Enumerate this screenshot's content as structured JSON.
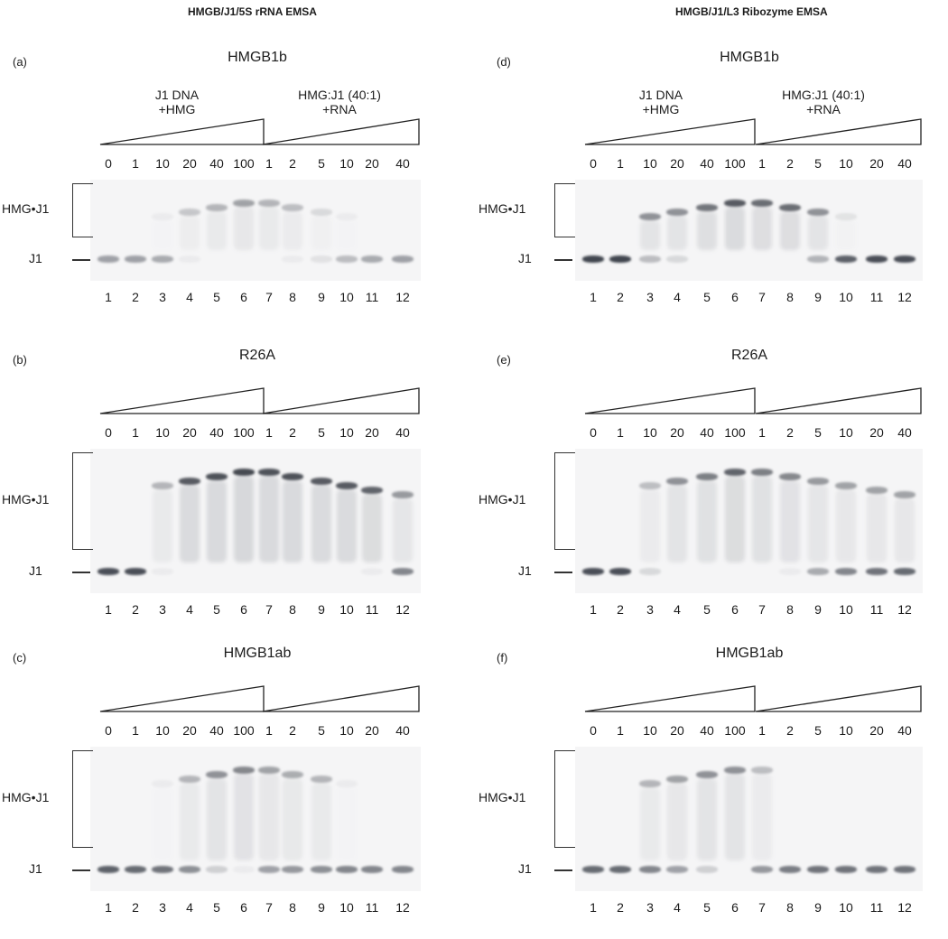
{
  "figure": {
    "column_titles": [
      "HMGB/J1/5S rRNA EMSA",
      "HMGB/J1/L3 Ribozyme EMSA"
    ],
    "bound_label": "HMG•J1",
    "free_label": "J1",
    "panels": [
      {
        "letter": "(a)",
        "protein": "HMGB1b",
        "column": 0,
        "group_labels": [
          "J1 DNA\n+HMG",
          "HMG:J1 (40:1)\n+RNA"
        ],
        "concentrations_protein": [
          "0",
          "1",
          "10",
          "20",
          "40",
          "100"
        ],
        "concentrations_rna": [
          "1",
          "2",
          "5",
          "10",
          "20",
          "40"
        ],
        "lane_numbers": [
          "1",
          "2",
          "3",
          "4",
          "5",
          "6",
          "7",
          "8",
          "9",
          "10",
          "11",
          "12"
        ],
        "bound_band_intensity": [
          0,
          0,
          0.05,
          0.25,
          0.35,
          0.45,
          0.35,
          0.3,
          0.15,
          0.05,
          0,
          0
        ],
        "free_band_intensity": [
          0.45,
          0.45,
          0.4,
          0.05,
          0,
          0,
          0,
          0.05,
          0.1,
          0.3,
          0.4,
          0.45
        ]
      },
      {
        "letter": "(b)",
        "protein": "R26A",
        "column": 0,
        "group_labels": [],
        "concentrations_protein": [
          "0",
          "1",
          "10",
          "20",
          "40",
          "100"
        ],
        "concentrations_rna": [
          "1",
          "2",
          "5",
          "10",
          "20",
          "40"
        ],
        "lane_numbers": [
          "1",
          "2",
          "3",
          "4",
          "5",
          "6",
          "7",
          "8",
          "9",
          "10",
          "11",
          "12"
        ],
        "bound_band_intensity": [
          0,
          0,
          0.35,
          0.85,
          0.9,
          0.95,
          0.9,
          0.9,
          0.85,
          0.85,
          0.8,
          0.5
        ],
        "free_band_intensity": [
          0.9,
          0.9,
          0.05,
          0,
          0,
          0,
          0,
          0,
          0,
          0,
          0.05,
          0.6
        ]
      },
      {
        "letter": "(c)",
        "protein": "HMGB1ab",
        "column": 0,
        "group_labels": [],
        "concentrations_protein": [
          "0",
          "1",
          "10",
          "20",
          "40",
          "100"
        ],
        "concentrations_rna": [
          "1",
          "2",
          "5",
          "10",
          "20",
          "40"
        ],
        "lane_numbers": [
          "1",
          "2",
          "3",
          "4",
          "5",
          "6",
          "7",
          "8",
          "9",
          "10",
          "11",
          "12"
        ],
        "bound_band_intensity": [
          0,
          0,
          0.05,
          0.35,
          0.55,
          0.6,
          0.45,
          0.4,
          0.35,
          0.05,
          0,
          0
        ],
        "free_band_intensity": [
          0.8,
          0.75,
          0.7,
          0.55,
          0.2,
          0.05,
          0.45,
          0.5,
          0.55,
          0.6,
          0.6,
          0.6
        ]
      },
      {
        "letter": "(d)",
        "protein": "HMGB1b",
        "column": 1,
        "group_labels": [
          "J1 DNA\n+HMG",
          "HMG:J1 (40:1)\n+RNA"
        ],
        "concentrations_protein": [
          "0",
          "1",
          "10",
          "20",
          "40",
          "100"
        ],
        "concentrations_rna": [
          "1",
          "2",
          "5",
          "10",
          "20",
          "40"
        ],
        "lane_numbers": [
          "1",
          "2",
          "3",
          "4",
          "5",
          "6",
          "7",
          "8",
          "9",
          "10",
          "11",
          "12"
        ],
        "bound_band_intensity": [
          0,
          0,
          0.55,
          0.55,
          0.7,
          0.85,
          0.75,
          0.75,
          0.55,
          0.1,
          0,
          0
        ],
        "free_band_intensity": [
          0.95,
          0.95,
          0.3,
          0.15,
          0,
          0,
          0,
          0,
          0.35,
          0.8,
          0.9,
          0.9
        ]
      },
      {
        "letter": "(e)",
        "protein": "R26A",
        "column": 1,
        "group_labels": [],
        "concentrations_protein": [
          "0",
          "1",
          "10",
          "20",
          "40",
          "100"
        ],
        "concentrations_rna": [
          "1",
          "2",
          "5",
          "10",
          "20",
          "40"
        ],
        "lane_numbers": [
          "1",
          "2",
          "3",
          "4",
          "5",
          "6",
          "7",
          "8",
          "9",
          "10",
          "11",
          "12"
        ],
        "bound_band_intensity": [
          0,
          0,
          0.3,
          0.55,
          0.65,
          0.8,
          0.65,
          0.6,
          0.5,
          0.45,
          0.45,
          0.45
        ],
        "free_band_intensity": [
          0.9,
          0.9,
          0.15,
          0,
          0,
          0,
          0,
          0.05,
          0.4,
          0.6,
          0.7,
          0.75
        ]
      },
      {
        "letter": "(f)",
        "protein": "HMGB1ab",
        "column": 1,
        "group_labels": [],
        "concentrations_protein": [
          "0",
          "1",
          "10",
          "20",
          "40",
          "100"
        ],
        "concentrations_rna": [
          "1",
          "2",
          "5",
          "10",
          "20",
          "40"
        ],
        "lane_numbers": [
          "1",
          "2",
          "3",
          "4",
          "5",
          "6",
          "7",
          "8",
          "9",
          "10",
          "11",
          "12"
        ],
        "bound_band_intensity": [
          0,
          0,
          0.35,
          0.45,
          0.55,
          0.55,
          0.3,
          0,
          0,
          0,
          0,
          0
        ],
        "free_band_intensity": [
          0.75,
          0.75,
          0.6,
          0.45,
          0.2,
          0,
          0.5,
          0.65,
          0.7,
          0.7,
          0.7,
          0.7
        ]
      }
    ]
  }
}
